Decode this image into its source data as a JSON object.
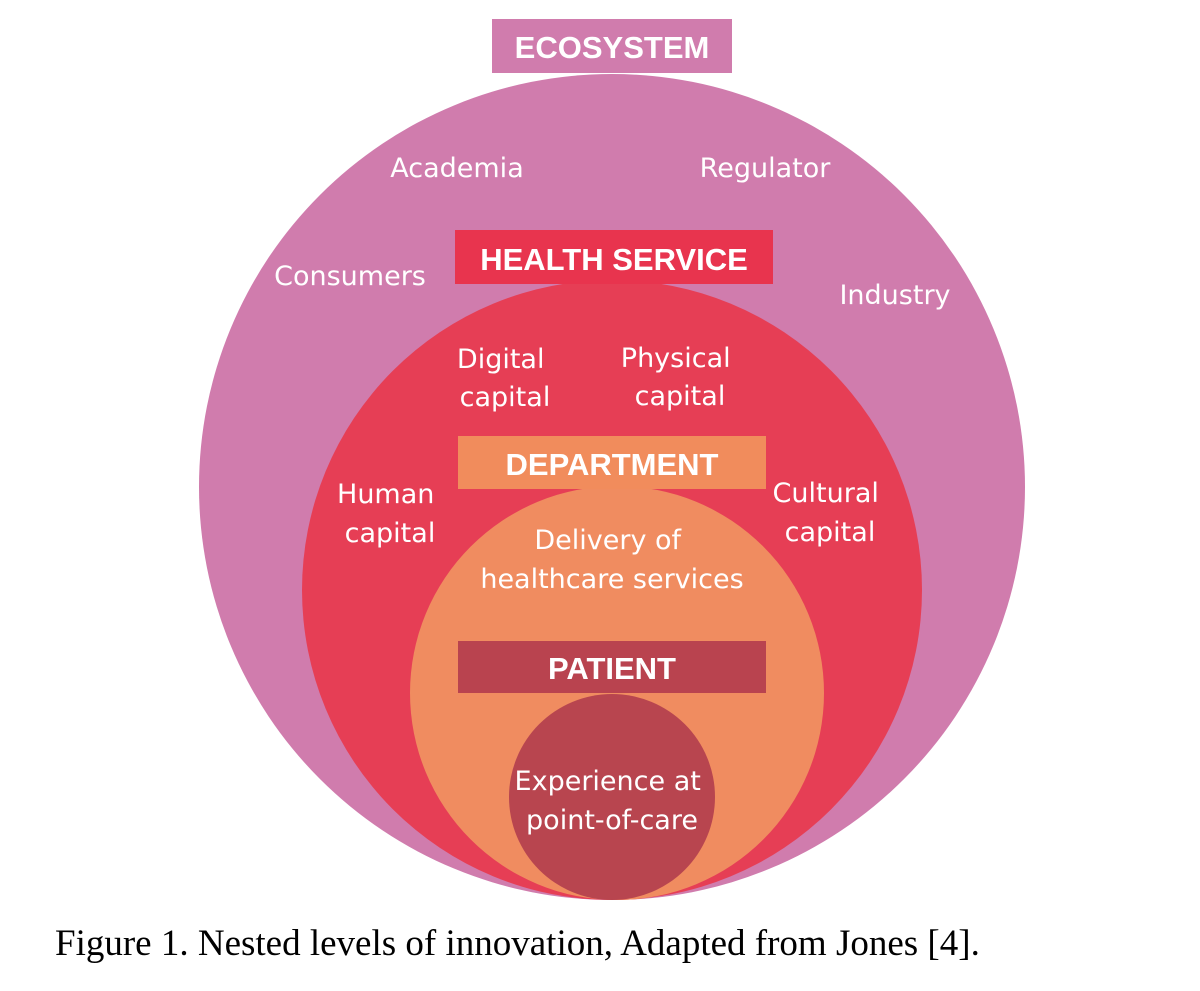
{
  "colors": {
    "ecosystem": "#d07cad",
    "health_service": "#e63e55",
    "department": "#f08c60",
    "patient": "#b8454f",
    "header_health": "#e8344e",
    "header_department": "#f18c5c",
    "header_patient": "#b9434f",
    "text": "#ffffff"
  },
  "ecosystem": {
    "header": "ECOSYSTEM",
    "academia": "Academia",
    "regulator": "Regulator",
    "consumers": "Consumers",
    "industry": "Industry"
  },
  "health_service": {
    "header": "HEALTH SERVICE",
    "digital": [
      "Digital",
      "capital"
    ],
    "physical": [
      "Physical",
      "capital"
    ],
    "human": [
      "Human",
      "capital"
    ],
    "cultural": [
      "Cultural",
      "capital"
    ]
  },
  "department": {
    "header": "DEPARTMENT",
    "delivery": [
      "Delivery of",
      "healthcare services"
    ]
  },
  "patient": {
    "header": "PATIENT",
    "experience": [
      "Experience at",
      "point-of-care"
    ]
  },
  "caption": "Figure 1. Nested levels of innovation, Adapted from Jones [4]."
}
